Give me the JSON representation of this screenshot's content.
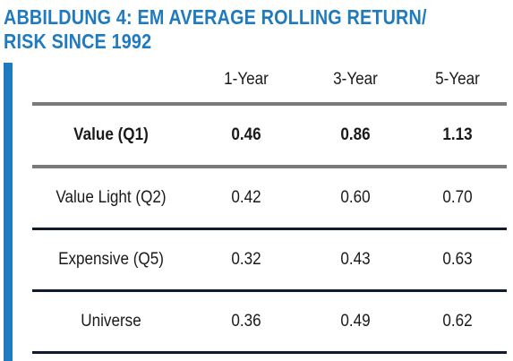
{
  "title": {
    "line1": "ABBILDUNG 4: EM AVERAGE ROLLING RETURN/",
    "line2": "RISK SINCE 1992"
  },
  "colors": {
    "accent": "#1f7bbf",
    "header_rule": "#7a7a7a",
    "row_rule": "#111b2e"
  },
  "chart_data": {
    "type": "table",
    "title": "ABBILDUNG 4: EM AVERAGE ROLLING RETURN/ RISK SINCE 1992",
    "columns": [
      "",
      "1-Year",
      "3-Year",
      "5-Year"
    ],
    "rows": [
      {
        "label": "Value (Q1)",
        "values": [
          "0.46",
          "0.86",
          "1.13"
        ],
        "bold": true
      },
      {
        "label": "Value Light (Q2)",
        "values": [
          "0.42",
          "0.60",
          "0.70"
        ],
        "bold": false
      },
      {
        "label": "Expensive (Q5)",
        "values": [
          "0.32",
          "0.43",
          "0.63"
        ],
        "bold": false
      },
      {
        "label": "Universe",
        "values": [
          "0.36",
          "0.49",
          "0.62"
        ],
        "bold": false
      }
    ]
  }
}
